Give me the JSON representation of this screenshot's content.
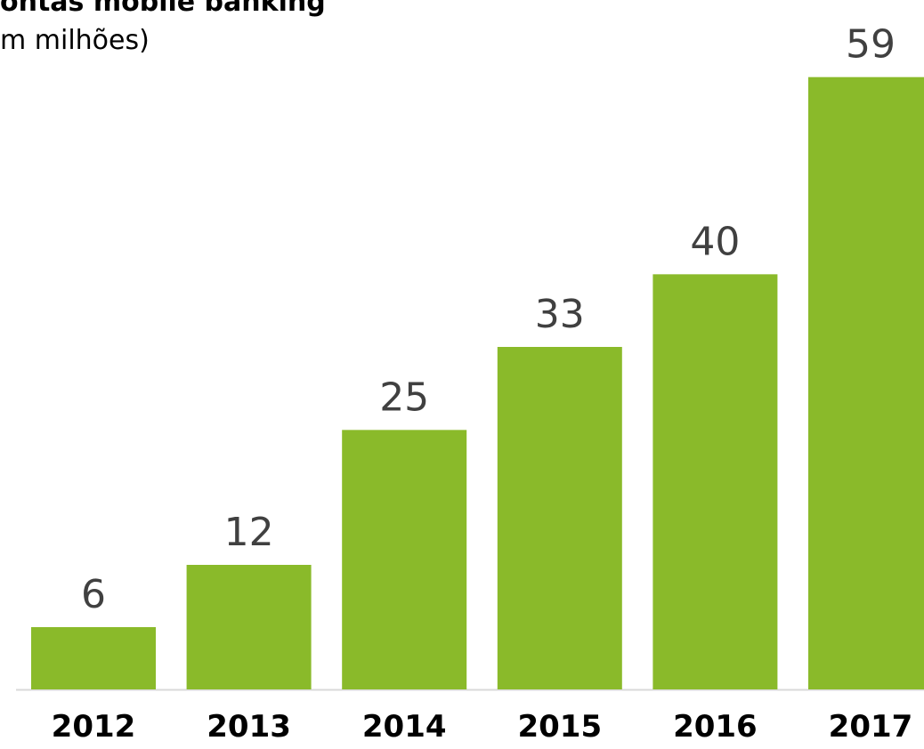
{
  "chart_data": {
    "type": "bar",
    "title": "ontas mobile banking",
    "subtitle": "m milhões)",
    "categories": [
      "2012",
      "2013",
      "2014",
      "2015",
      "2016",
      "2017"
    ],
    "values": [
      6,
      12,
      25,
      33,
      40,
      59
    ],
    "color": "#8aba2a",
    "ylim": [
      0,
      66
    ]
  }
}
